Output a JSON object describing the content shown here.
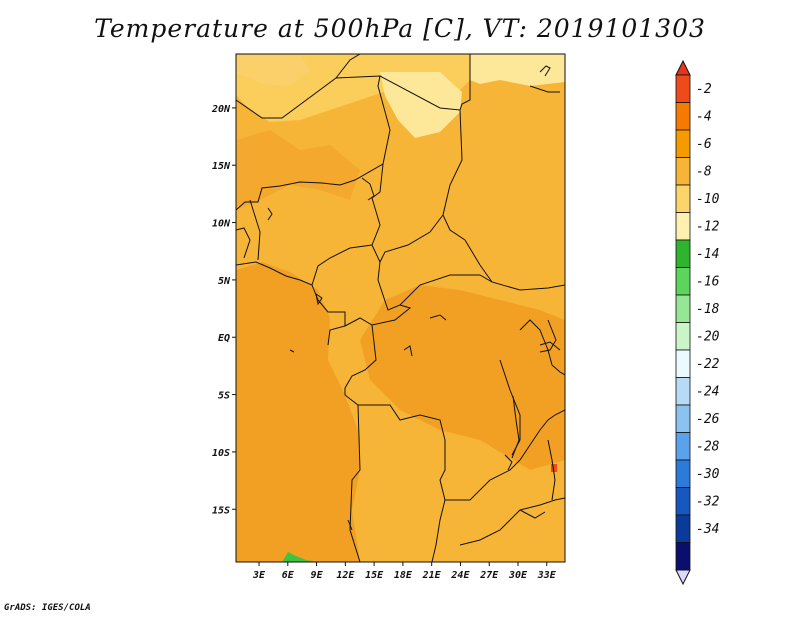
{
  "title": "Temperature at 500hPa [C], VT: 2019101303",
  "credit": "GrADS: IGES/COLA",
  "map": {
    "lat_ticks": [
      {
        "lat": 20,
        "label": "20N"
      },
      {
        "lat": 15,
        "label": "15N"
      },
      {
        "lat": 10,
        "label": "10N"
      },
      {
        "lat": 5,
        "label": "5N"
      },
      {
        "lat": 0,
        "label": "EQ"
      },
      {
        "lat": -5,
        "label": "5S"
      },
      {
        "lat": -10,
        "label": "10S"
      },
      {
        "lat": -15,
        "label": "15S"
      }
    ],
    "lon_ticks": [
      {
        "lon": 3,
        "label": "3E"
      },
      {
        "lon": 6,
        "label": "6E"
      },
      {
        "lon": 9,
        "label": "9E"
      },
      {
        "lon": 12,
        "label": "12E"
      },
      {
        "lon": 15,
        "label": "15E"
      },
      {
        "lon": 18,
        "label": "18E"
      },
      {
        "lon": 21,
        "label": "21E"
      },
      {
        "lon": 24,
        "label": "24E"
      },
      {
        "lon": 27,
        "label": "27E"
      },
      {
        "lon": 30,
        "label": "30E"
      },
      {
        "lon": 33,
        "label": "33E"
      }
    ],
    "fill_colors": {
      "background": "#f7b538",
      "warm": "#f2a024",
      "cool": "#fbcd5a",
      "coolest": "#fde89a",
      "green": "#3fc43f"
    }
  },
  "colorbar": {
    "labels": [
      "-2",
      "-4",
      "-6",
      "-8",
      "-10",
      "-12",
      "-14",
      "-16",
      "-18",
      "-20",
      "-22",
      "-24",
      "-26",
      "-28",
      "-30",
      "-32",
      "-34"
    ],
    "colors": [
      "#ef4a1a",
      "#f57a00",
      "#f59a00",
      "#f7b538",
      "#fbd46a",
      "#fdf0b0",
      "#2fb42f",
      "#5cd55c",
      "#95e695",
      "#c9f5c9",
      "#eafaff",
      "#b7dbf7",
      "#8cc2f0",
      "#5aa3ea",
      "#2c7ad9",
      "#1658c0",
      "#0b3b9a",
      "#0a0f6e"
    ],
    "top_arrow_color": "#e6351a",
    "bottom_arrow_color": "#d9d9ff"
  }
}
